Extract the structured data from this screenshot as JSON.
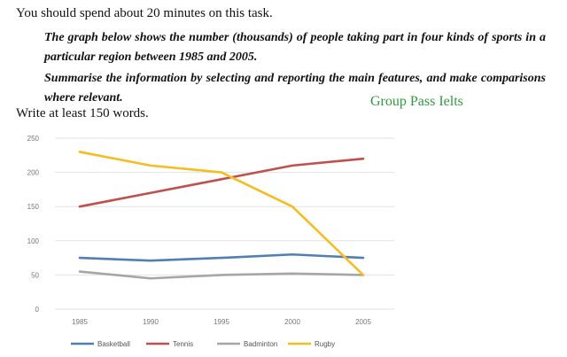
{
  "instructions": {
    "time_note": "You should spend about 20 minutes on this task.",
    "prompt_p1": "The graph below shows the number (thousands) of people taking part in four kinds of sports in a particular region between 1985 and 2005.",
    "prompt_p2": "Summarise the information by selecting and reporting the main features, and make comparisons where relevant.",
    "word_count": "Write at least 150 words."
  },
  "watermark": "Group Pass Ielts",
  "chart_data": {
    "type": "line",
    "x": [
      1985,
      1990,
      1995,
      2000,
      2005
    ],
    "x_ticks": [
      "1985",
      "1990",
      "1995",
      "2000",
      "2005"
    ],
    "ylim": [
      0,
      250
    ],
    "y_ticks": [
      0,
      50,
      100,
      150,
      200,
      250
    ],
    "grid": true,
    "legend_position": "bottom",
    "series": [
      {
        "name": "Basketball",
        "color": "#4f7fb5",
        "values": [
          75,
          71,
          75,
          80,
          75
        ]
      },
      {
        "name": "Tennis",
        "color": "#c0504d",
        "values": [
          150,
          170,
          190,
          210,
          220
        ]
      },
      {
        "name": "Badminton",
        "color": "#a6a6a6",
        "values": [
          55,
          45,
          50,
          52,
          50
        ]
      },
      {
        "name": "Rugby",
        "color": "#f5bd1f",
        "values": [
          230,
          210,
          200,
          150,
          50
        ]
      }
    ]
  }
}
